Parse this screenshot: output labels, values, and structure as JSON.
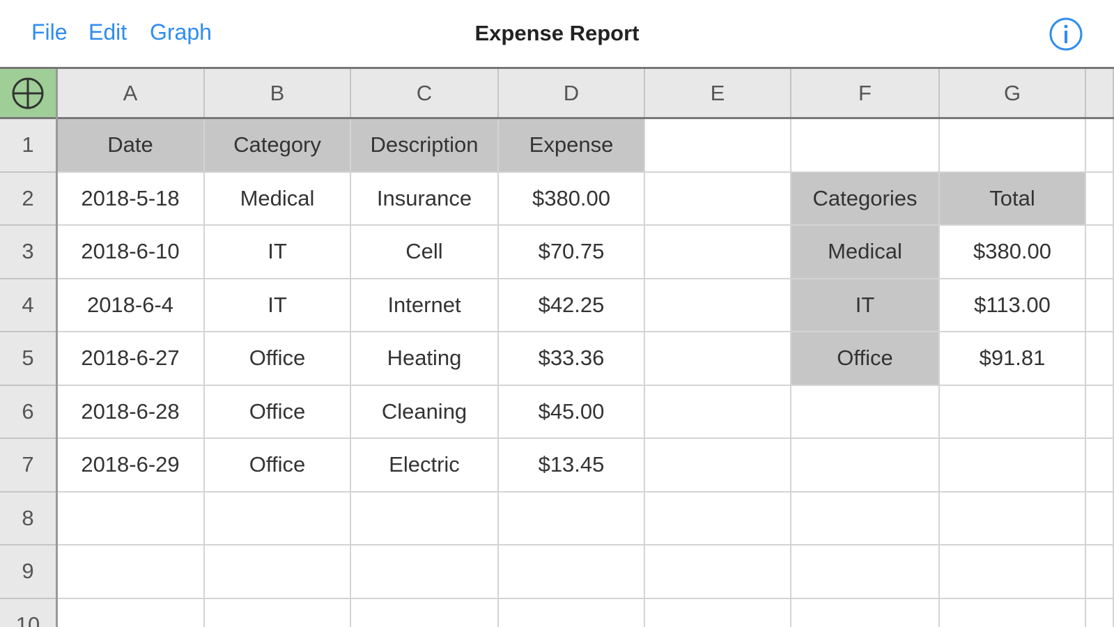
{
  "menu": [
    "File",
    "Edit",
    "Graph"
  ],
  "title": "Expense Report",
  "columns": [
    "A",
    "B",
    "C",
    "D",
    "E",
    "F",
    "G"
  ],
  "row_numbers": [
    1,
    2,
    3,
    4,
    5,
    6,
    7,
    8,
    9,
    10
  ],
  "expense_table": {
    "header": [
      "Date",
      "Category",
      "Description",
      "Expense"
    ],
    "rows": [
      [
        "2018-5-18",
        "Medical",
        "Insurance",
        "$380.00"
      ],
      [
        "2018-6-10",
        "IT",
        "Cell",
        "$70.75"
      ],
      [
        "2018-6-4",
        "IT",
        "Internet",
        "$42.25"
      ],
      [
        "2018-6-27",
        "Office",
        "Heating",
        "$33.36"
      ],
      [
        "2018-6-28",
        "Office",
        "Cleaning",
        "$45.00"
      ],
      [
        "2018-6-29",
        "Office",
        "Electric",
        "$13.45"
      ]
    ]
  },
  "summary_table": {
    "header": [
      "Categories",
      "Total"
    ],
    "rows": [
      [
        "Medical",
        "$380.00"
      ],
      [
        "IT",
        "$113.00"
      ],
      [
        "Office",
        "$91.81"
      ]
    ]
  }
}
